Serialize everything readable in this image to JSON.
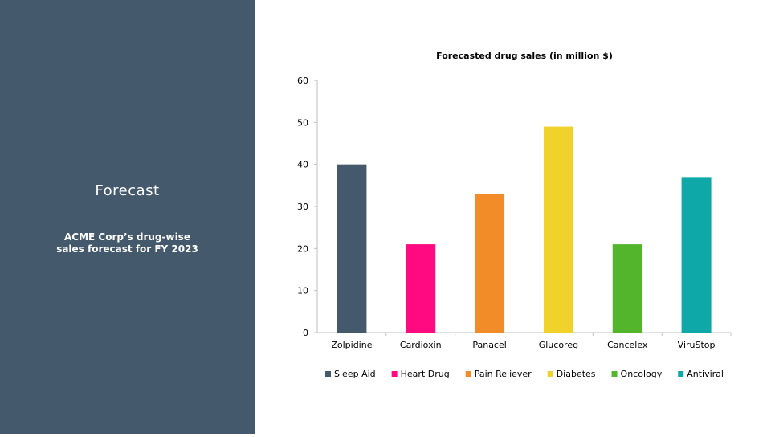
{
  "slide": {
    "title": "Forecast",
    "subtitle_line1": "ACME Corp’s drug-wise",
    "subtitle_line2": "sales forecast for FY 2023"
  },
  "chart_data": {
    "type": "bar",
    "title": "Forecasted drug sales (in million $)",
    "categories": [
      "Zolpidine",
      "Cardioxin",
      "Panacel",
      "Glucoreg",
      "Cancelex",
      "ViruStop"
    ],
    "values": [
      40,
      21,
      33,
      49,
      21,
      37
    ],
    "colors": [
      "#44596b",
      "#ff0a80",
      "#f28c28",
      "#f0d22a",
      "#53b52c",
      "#0fa8a8"
    ],
    "legend": [
      "Sleep Aid",
      "Heart Drug",
      "Pain Reliever",
      "Diabetes",
      "Oncology",
      "Antiviral"
    ],
    "legend_position": "bottom",
    "ylim": [
      0,
      60
    ],
    "yticks": [
      0,
      10,
      20,
      30,
      40,
      50,
      60
    ],
    "grid": false
  }
}
